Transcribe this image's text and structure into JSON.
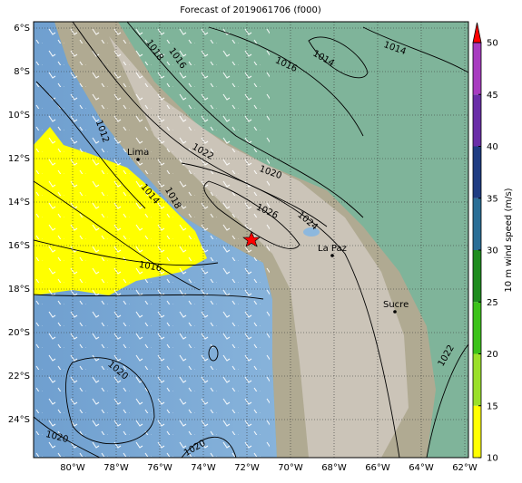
{
  "title": "Forecast of 2019061706 (f000)",
  "map": {
    "lon_ticks": [
      "80°W",
      "78°W",
      "76°W",
      "74°W",
      "72°W",
      "70°W",
      "68°W",
      "66°W",
      "64°W",
      "62°W"
    ],
    "lat_ticks": [
      "6°S",
      "8°S",
      "10°S",
      "12°S",
      "14°S",
      "16°S",
      "18°S",
      "20°S",
      "22°S",
      "24°S"
    ],
    "cities": [
      "Lima",
      "La Paz",
      "Sucre"
    ],
    "contour_labels": [
      1018,
      1016,
      1016,
      1014,
      1014,
      1012,
      1022,
      1020,
      1014,
      1018,
      1026,
      1024,
      1016,
      1020,
      1022,
      1020,
      1020
    ]
  },
  "colorbar": {
    "label": "10 m wind speed (m/s)",
    "ticks": [
      10,
      15,
      20,
      25,
      30,
      35,
      40,
      45,
      50
    ],
    "colors": [
      "#ffff00",
      "#9be02a",
      "#3cc21a",
      "#1e8c1e",
      "#2a6e96",
      "#1f3c82",
      "#6a2ea8",
      "#a83cc0"
    ],
    "extend_color": "#ff0000"
  }
}
